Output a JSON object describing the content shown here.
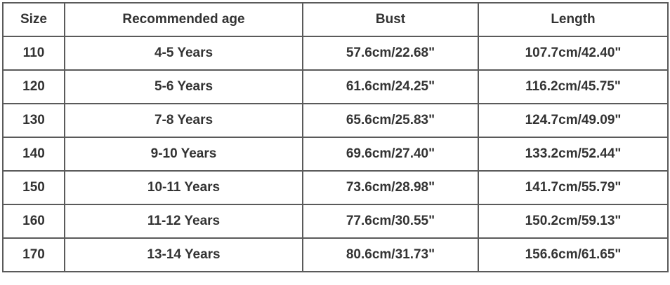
{
  "table": {
    "headers": [
      "Size",
      "Recommended age",
      "Bust",
      "Length"
    ],
    "rows": [
      [
        "110",
        "4-5 Years",
        "57.6cm/22.68\"",
        "107.7cm/42.40\""
      ],
      [
        "120",
        "5-6 Years",
        "61.6cm/24.25\"",
        "116.2cm/45.75\""
      ],
      [
        "130",
        "7-8 Years",
        "65.6cm/25.83\"",
        "124.7cm/49.09\""
      ],
      [
        "140",
        "9-10 Years",
        "69.6cm/27.40\"",
        "133.2cm/52.44\""
      ],
      [
        "150",
        "10-11 Years",
        "73.6cm/28.98\"",
        "141.7cm/55.79\""
      ],
      [
        "160",
        "11-12 Years",
        "77.6cm/30.55\"",
        "150.2cm/59.13\""
      ],
      [
        "170",
        "13-14 Years",
        "80.6cm/31.73\"",
        "156.6cm/61.65\""
      ]
    ]
  }
}
